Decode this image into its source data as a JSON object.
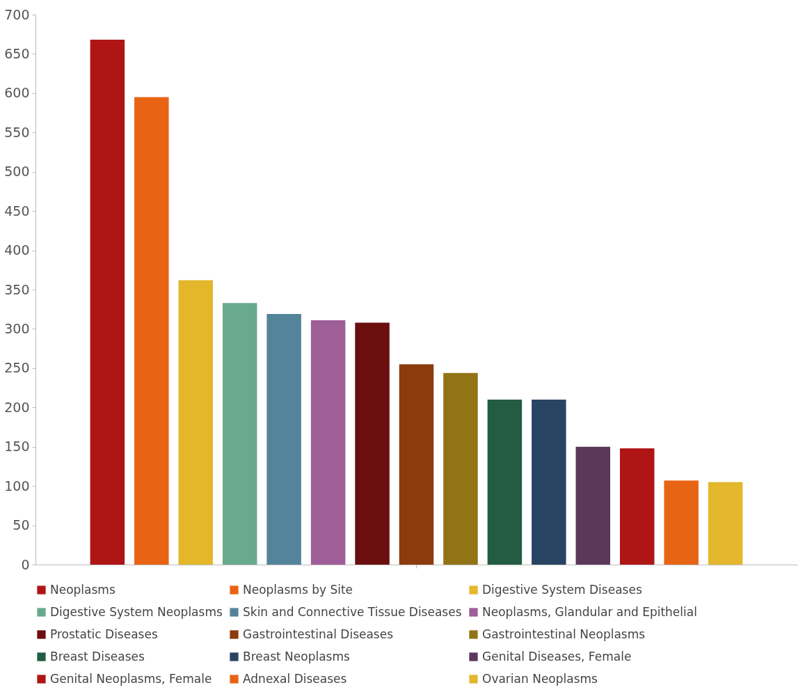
{
  "chart_data": {
    "type": "bar",
    "categories": [
      null
    ],
    "series": [
      {
        "name": "Neoplasms",
        "color": "#b01515",
        "values": [
          668
        ]
      },
      {
        "name": "Neoplasms by Site",
        "color": "#e86414",
        "values": [
          595
        ]
      },
      {
        "name": "Digestive System Diseases",
        "color": "#e4b72b",
        "values": [
          362
        ]
      },
      {
        "name": "Digestive System Neoplasms",
        "color": "#69aa8f",
        "values": [
          333
        ]
      },
      {
        "name": "Skin and Connective Tissue Diseases",
        "color": "#54849a",
        "values": [
          319
        ]
      },
      {
        "name": "Neoplasms, Glandular and Epithelial",
        "color": "#9e5e98",
        "values": [
          311
        ]
      },
      {
        "name": "Prostatic Diseases",
        "color": "#6b0e0e",
        "values": [
          308
        ]
      },
      {
        "name": "Gastrointestinal Diseases",
        "color": "#8c3b0d",
        "values": [
          255
        ]
      },
      {
        "name": "Gastrointestinal Neoplasms",
        "color": "#927315",
        "values": [
          244
        ]
      },
      {
        "name": "Breast Diseases",
        "color": "#235c42",
        "values": [
          210
        ]
      },
      {
        "name": "Breast Neoplasms",
        "color": "#294462",
        "values": [
          210
        ]
      },
      {
        "name": "Genital Diseases, Female",
        "color": "#5c375c",
        "values": [
          150
        ]
      },
      {
        "name": "Genital Neoplasms, Female",
        "color": "#b01516",
        "values": [
          148
        ]
      },
      {
        "name": "Adnexal Diseases",
        "color": "#e86415",
        "values": [
          107
        ]
      },
      {
        "name": "Ovarian Neoplasms",
        "color": "#e4b72c",
        "values": [
          105
        ]
      }
    ],
    "ylim": [
      0,
      700
    ],
    "yticks": [
      0,
      50,
      100,
      150,
      200,
      250,
      300,
      350,
      400,
      450,
      500,
      550,
      600,
      650,
      700
    ],
    "tick_labels": "y",
    "grid": false,
    "legend": "bottom"
  }
}
